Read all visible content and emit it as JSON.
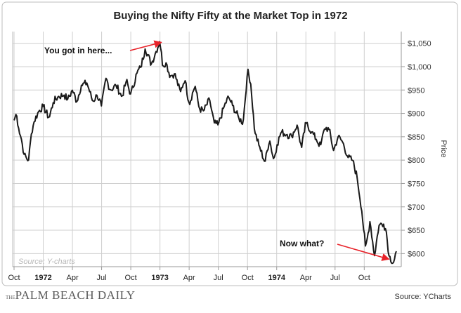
{
  "chart_data": {
    "type": "line",
    "title": "Buying the Nifty Fifty at the Market Top in 1972",
    "xlabel": "",
    "ylabel": "Price",
    "ylim": [
      572,
      1075
    ],
    "grid": true,
    "x_ticks": [
      "Oct",
      "1972",
      "Apr",
      "Jul",
      "Oct",
      "1973",
      "Apr",
      "Jul",
      "Oct",
      "1974",
      "Apr",
      "Jul",
      "Oct"
    ],
    "x_bold_ticks": [
      "1972",
      "1973",
      "1974"
    ],
    "y_ticks": [
      600,
      650,
      700,
      750,
      800,
      850,
      900,
      950,
      1000,
      1050
    ],
    "y_tick_labels": [
      "$600",
      "$650",
      "$700",
      "$750",
      "$800",
      "$850",
      "$900",
      "$950",
      "$1,000",
      "$1,050"
    ],
    "series": [
      {
        "name": "Price",
        "t": [
          0,
          0.08,
          0.15,
          0.25,
          0.35,
          0.5,
          0.6,
          0.7,
          0.85,
          1.0,
          1.2,
          1.35,
          1.5,
          1.7,
          1.85,
          2.0,
          2.15,
          2.3,
          2.5,
          2.7,
          2.85,
          3.0,
          3.15,
          3.3,
          3.5,
          3.7,
          3.85,
          4.0,
          4.2,
          4.35,
          4.5,
          4.7,
          4.85,
          5.0,
          5.1,
          5.2,
          5.35,
          5.5,
          5.7,
          5.85,
          6.0,
          6.2,
          6.35,
          6.5,
          6.7,
          6.85,
          7.0,
          7.2,
          7.35,
          7.5,
          7.7,
          7.85,
          8.0,
          8.1,
          8.25,
          8.4,
          8.6,
          8.75,
          8.9,
          9.0,
          9.15,
          9.35,
          9.5,
          9.7,
          9.85,
          10.0,
          10.2,
          10.35,
          10.5,
          10.65,
          10.8,
          10.95,
          11.1,
          11.25,
          11.45,
          11.6,
          11.75,
          11.9,
          12.05,
          12.2,
          12.35,
          12.5,
          12.65,
          12.75,
          12.85,
          13.0,
          13.1
        ],
        "values": [
          885,
          900,
          870,
          845,
          810,
          800,
          860,
          885,
          905,
          915,
          890,
          925,
          935,
          940,
          930,
          950,
          925,
          960,
          965,
          925,
          940,
          915,
          975,
          950,
          960,
          935,
          970,
          940,
          985,
          1000,
          1040,
          1005,
          1030,
          1055,
          1000,
          1010,
          980,
          985,
          945,
          975,
          920,
          960,
          910,
          905,
          930,
          880,
          875,
          915,
          935,
          915,
          890,
          880,
          990,
          970,
          860,
          830,
          795,
          845,
          800,
          830,
          860,
          855,
          850,
          875,
          825,
          880,
          860,
          845,
          830,
          870,
          865,
          820,
          850,
          840,
          805,
          800,
          765,
          700,
          610,
          670,
          595,
          660,
          665,
          650,
          595,
          580,
          605
        ]
      }
    ],
    "annotations": [
      {
        "text": "You got in here...",
        "arrow_to": {
          "t": 5.05,
          "value": 1055
        }
      },
      {
        "text": "Now what?",
        "arrow_to": {
          "t": 12.85,
          "value": 588
        }
      }
    ],
    "watermark": "Source: Y-charts"
  },
  "footer": {
    "logo_small": "THE",
    "logo": "PALM BEACH DAILY",
    "source": "Source: YCharts"
  },
  "colors": {
    "line": "#1a1a1a",
    "arrow": "#e8232a",
    "grid": "#cfcfcf",
    "frame": "#bdbdbd",
    "text": "#222222",
    "watermark": "#b8b8b8"
  }
}
